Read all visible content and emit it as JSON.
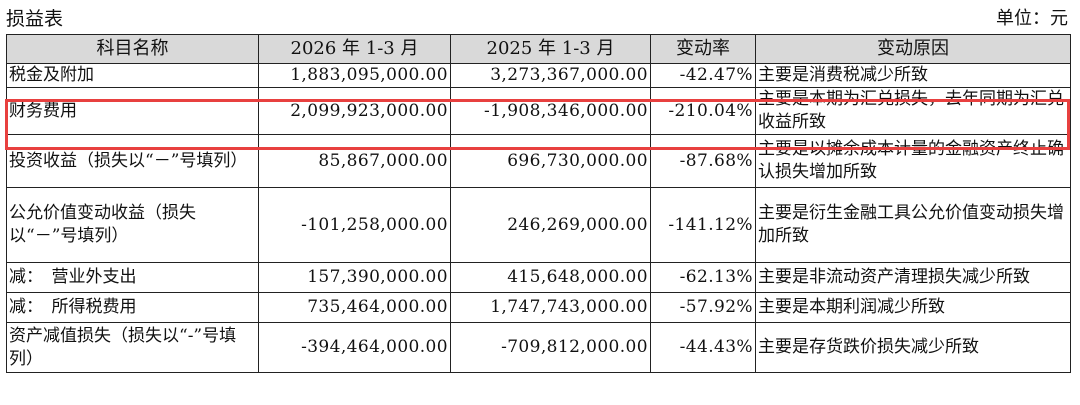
{
  "page": {
    "title": "损益表",
    "unit": "单位：元"
  },
  "table": {
    "headers": [
      "科目名称",
      "2026 年 1-3 月",
      "2025 年 1-3 月",
      "变动率",
      "变动原因"
    ],
    "rows": [
      {
        "name": "税金及附加",
        "v2026": "1,883,095,000.00",
        "v2025": "3,273,367,000.00",
        "rate": "-42.47%",
        "reason": "主要是消费税减少所致"
      },
      {
        "name": "财务费用",
        "v2026": "2,099,923,000.00",
        "v2025": "-1,908,346,000.00",
        "rate": "-210.04%",
        "reason": "主要是本期为汇兑损失，去年同期为汇兑收益所致"
      },
      {
        "name": "投资收益（损失以“－”号填列）",
        "v2026": "85,867,000.00",
        "v2025": "696,730,000.00",
        "rate": "-87.68%",
        "reason": "主要是以摊余成本计量的金融资产终止确认损失增加所致"
      },
      {
        "name": "公允价值变动收益（损失以“－”号填列）",
        "v2026": "-101,258,000.00",
        "v2025": "246,269,000.00",
        "rate": "-141.12%",
        "reason": "主要是衍生金融工具公允价值变动损失增加所致"
      },
      {
        "name": "减：　营业外支出",
        "v2026": "157,390,000.00",
        "v2025": "415,648,000.00",
        "rate": "-62.13%",
        "reason": "主要是非流动资产清理损失减少所致"
      },
      {
        "name": "减：　所得税费用",
        "v2026": "735,464,000.00",
        "v2025": "1,747,743,000.00",
        "rate": "-57.92%",
        "reason": "主要是本期利润减少所致"
      },
      {
        "name": "资产减值损失（损失以“-”号填列）",
        "v2026": "-394,464,000.00",
        "v2025": "-709,812,000.00",
        "rate": "-44.43%",
        "reason": "主要是存货跌价损失减少所致"
      }
    ]
  },
  "highlight": {
    "row_name": "财务费用",
    "color": "#e8403f"
  }
}
